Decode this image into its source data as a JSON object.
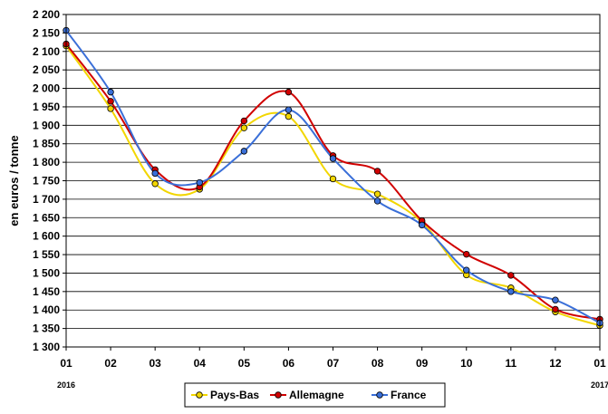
{
  "chart_data": {
    "type": "line",
    "ylabel": "en euros / tonne",
    "ylim": [
      1300,
      2200
    ],
    "yticks": [
      1300,
      1350,
      1400,
      1450,
      1500,
      1550,
      1600,
      1650,
      1700,
      1750,
      1800,
      1850,
      1900,
      1950,
      2000,
      2050,
      2100,
      2150,
      2200
    ],
    "ytick_labels": [
      "1 300",
      "1 350",
      "1 400",
      "1 450",
      "1 500",
      "1 550",
      "1 600",
      "1 650",
      "1 700",
      "1 750",
      "1 800",
      "1 850",
      "1 900",
      "1 950",
      "2 000",
      "2 050",
      "2 100",
      "2 150",
      "2 200"
    ],
    "categories": [
      "01",
      "02",
      "03",
      "04",
      "05",
      "06",
      "07",
      "08",
      "09",
      "10",
      "11",
      "12",
      "01"
    ],
    "year_labels": [
      {
        "text": "2016",
        "index": 0
      },
      {
        "text": "2017",
        "index": 12
      }
    ],
    "grid": true,
    "smooth": true,
    "legend_position": "bottom",
    "series": [
      {
        "name": "Pays-Bas",
        "color": "#f2d600",
        "values": [
          2115,
          1945,
          1742,
          1727,
          1893,
          1924,
          1755,
          1714,
          1638,
          1495,
          1460,
          1395,
          1358
        ]
      },
      {
        "name": "Allemagne",
        "color": "#d00000",
        "values": [
          2120,
          1965,
          1780,
          1733,
          1912,
          1990,
          1818,
          1776,
          1642,
          1551,
          1494,
          1402,
          1375
        ]
      },
      {
        "name": "France",
        "color": "#3a6fd8",
        "values": [
          2157,
          1990,
          1770,
          1745,
          1830,
          1942,
          1810,
          1695,
          1630,
          1508,
          1450,
          1427,
          1365
        ]
      }
    ]
  }
}
